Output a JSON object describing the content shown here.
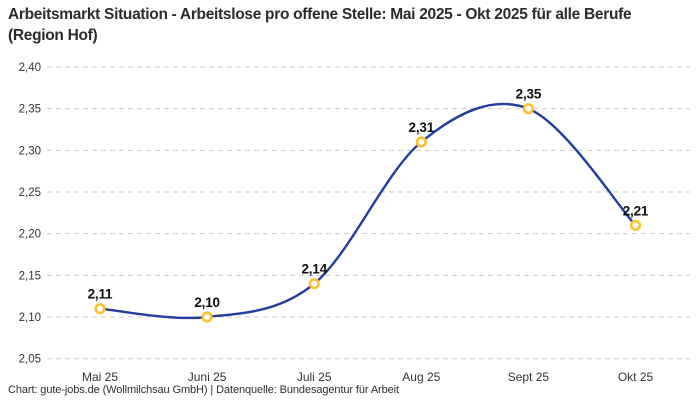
{
  "header": {
    "title": "Arbeitsmarkt Situation - Arbeitslose pro offene Stelle: Mai 2025 - Okt 2025 für alle Berufe (Region Hof)"
  },
  "footer": {
    "text": "Chart: gute-jobs.de (Wollmilchsau GmbH) | Datenquelle: Bundesagentur für Arbeit"
  },
  "colors": {
    "line": "#213c9e",
    "marker_ring": "#fcc12f",
    "marker_fill": "#ffffff",
    "grid": "#cccccc",
    "title_text": "#2b2b2b",
    "value_label_text": "#0e0e0e",
    "tick_text": "#333333"
  },
  "chart_data": {
    "type": "line",
    "title": "Arbeitsmarkt Situation - Arbeitslose pro offene Stelle: Mai 2025 - Okt 2025 für alle Berufe (Region Hof)",
    "categories": [
      "Mai 25",
      "Juni 25",
      "Juli 25",
      "Aug 25",
      "Sept 25",
      "Okt 25"
    ],
    "values": [
      2.11,
      2.1,
      2.14,
      2.31,
      2.35,
      2.21
    ],
    "value_labels": [
      "2,11",
      "2,10",
      "2,14",
      "2,31",
      "2,35",
      "2,21"
    ],
    "y_tick_labels": [
      "2,40",
      "2,35",
      "2,30",
      "2,25",
      "2,20",
      "2,15",
      "2,10",
      "2,05"
    ],
    "ylim": [
      2.05,
      2.4
    ],
    "y_tick_step": 0.05,
    "xlabel": "",
    "ylabel": "",
    "grid": "dashed-horizontal",
    "legend": "none",
    "line_style": "smooth",
    "marker": "open-circle",
    "source_note": "Chart: gute-jobs.de (Wollmilchsau GmbH) | Datenquelle: Bundesagentur für Arbeit"
  }
}
